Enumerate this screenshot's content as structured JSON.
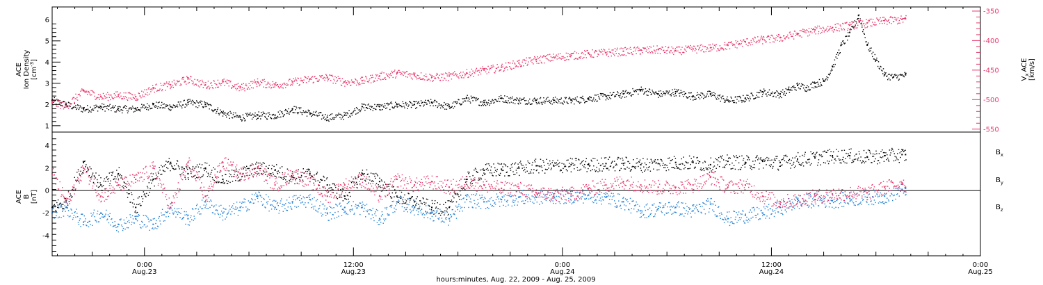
{
  "colors": {
    "black": "#000000",
    "blue": "#1f7fd6",
    "pink": "#e8356a",
    "axis": "#000000"
  },
  "x_axis": {
    "caption": "hours:minutes, Aug. 22, 2009 - Aug. 25, 2009",
    "ticks": [
      {
        "time": "0:00",
        "date": "Aug.23"
      },
      {
        "time": "12:00",
        "date": "Aug.23"
      },
      {
        "time": "0:00",
        "date": "Aug.24"
      },
      {
        "time": "12:00",
        "date": "Aug.24"
      },
      {
        "time": "0:00",
        "date": "Aug.25"
      }
    ]
  },
  "chart_data": [
    {
      "type": "scatter",
      "panel": "top",
      "xlabel": "hours:minutes, Aug. 22, 2009 - Aug. 25, 2009",
      "x_unit": "hours since 2009-08-22 00:00",
      "xlim": [
        18.7,
        72
      ],
      "left_axis": {
        "label_lines": [
          "ACE",
          "Ion Density"
        ],
        "unit": "[cm",
        "unit_exp": "-3",
        "unit_close": "]",
        "ylim": [
          0.7,
          6.6
        ],
        "ticks": [
          "1",
          "2",
          "3",
          "4",
          "5",
          "6"
        ]
      },
      "right_axis": {
        "label_main": "ACE",
        "label_sub": "V",
        "label_subscript": "x",
        "unit": "[km/s]",
        "ylim": [
          -555,
          -343
        ],
        "ticks": [
          "-350",
          "-400",
          "-450",
          "-500",
          "-550"
        ],
        "color": "#e8356a"
      },
      "series": [
        {
          "color": "#000000",
          "axis": "left",
          "x": [
            18.7,
            19.5,
            20.5,
            21.5,
            22.5,
            23.5,
            24.5,
            25.5,
            26.5,
            27.5,
            28.5,
            29.5,
            30.5,
            31.5,
            32.5,
            33.5,
            34.5,
            35.5,
            36.5,
            37.5,
            38.5,
            39.5,
            40.5,
            41.5,
            42.5,
            43.5,
            44.5,
            45.5,
            46.5,
            47.5,
            48.5,
            49.5,
            50.5,
            51.5,
            52.5,
            53.5,
            54.5,
            55.5,
            56.5,
            57.5,
            58.5,
            59.5,
            60.5,
            61.0,
            61.5,
            62.0,
            62.5,
            63.0,
            63.5,
            64.0,
            64.5,
            65.0,
            65.5,
            66.0,
            66.5,
            67.0,
            67.7
          ],
          "y": [
            2.2,
            2.0,
            1.8,
            1.9,
            1.8,
            1.8,
            2.0,
            1.9,
            2.1,
            2.0,
            1.6,
            1.4,
            1.5,
            1.5,
            1.8,
            1.6,
            1.4,
            1.5,
            1.9,
            1.9,
            2.0,
            2.0,
            2.1,
            1.9,
            2.3,
            2.1,
            2.3,
            2.2,
            2.2,
            2.2,
            2.2,
            2.3,
            2.4,
            2.5,
            2.7,
            2.5,
            2.6,
            2.4,
            2.5,
            2.2,
            2.3,
            2.6,
            2.5,
            2.7,
            2.9,
            2.8,
            3.0,
            3.1,
            3.8,
            4.8,
            5.4,
            6.2,
            4.8,
            4.1,
            3.4,
            3.3,
            3.4
          ]
        },
        {
          "color": "#e8356a",
          "axis": "right",
          "x": [
            18.7,
            19.5,
            20.5,
            21.5,
            22.5,
            23.5,
            24.5,
            25.5,
            26.5,
            27.5,
            28.5,
            29.5,
            30.5,
            31.5,
            32.5,
            33.5,
            34.5,
            35.5,
            36.5,
            37.5,
            38.5,
            39.5,
            40.5,
            41.5,
            42.5,
            43.5,
            44.5,
            45.5,
            46.5,
            47.5,
            48.5,
            49.5,
            50.5,
            51.5,
            52.5,
            53.5,
            54.5,
            55.5,
            56.5,
            57.5,
            58.5,
            59.5,
            60.5,
            61.5,
            62.5,
            63.5,
            64.5,
            65.5,
            66.5,
            67.5,
            67.7
          ],
          "y": [
            -505,
            -510,
            -485,
            -495,
            -492,
            -495,
            -480,
            -475,
            -465,
            -475,
            -470,
            -480,
            -470,
            -475,
            -470,
            -465,
            -462,
            -470,
            -468,
            -460,
            -455,
            -458,
            -462,
            -460,
            -455,
            -450,
            -445,
            -438,
            -432,
            -428,
            -425,
            -422,
            -420,
            -418,
            -416,
            -415,
            -417,
            -414,
            -412,
            -408,
            -402,
            -398,
            -395,
            -388,
            -382,
            -378,
            -374,
            -370,
            -366,
            -364,
            -363
          ]
        }
      ]
    },
    {
      "type": "scatter",
      "panel": "bottom",
      "xlabel": "hours:minutes, Aug. 22, 2009 - Aug. 25, 2009",
      "x_unit": "hours since 2009-08-22 00:00",
      "xlim": [
        18.7,
        72
      ],
      "left_axis": {
        "label_lines": [
          "ACE",
          "B"
        ],
        "unit": "[nT]",
        "ylim": [
          -5.8,
          5.2
        ],
        "ticks": [
          "4",
          "2",
          "0",
          "-2",
          "-4"
        ],
        "zero_line": true
      },
      "series": [
        {
          "name": "B",
          "subscript": "x",
          "color": "#000000",
          "x": [
            18.7,
            19.5,
            20.5,
            21.5,
            22.5,
            23.5,
            24.5,
            25.5,
            26.5,
            27.5,
            28.5,
            29.5,
            30.5,
            31.5,
            32.5,
            33.5,
            34.5,
            35.5,
            36.5,
            37.5,
            38.5,
            39.5,
            40.5,
            41.5,
            42.5,
            43.5,
            44.5,
            45.5,
            46.5,
            47.5,
            48.5,
            49.5,
            50.5,
            51.5,
            52.5,
            53.5,
            54.5,
            55.5,
            56.5,
            57.5,
            58.5,
            59.5,
            60.5,
            61.5,
            62.5,
            63.5,
            64.5,
            65.5,
            66.5,
            67.5,
            67.7
          ],
          "y": [
            -1.5,
            -1.0,
            2.5,
            0.5,
            1.5,
            -1.5,
            1.0,
            2.5,
            1.5,
            2.0,
            1.0,
            1.5,
            2.0,
            1.8,
            1.2,
            1.5,
            0.5,
            -0.5,
            1.5,
            0.8,
            -0.5,
            -1.0,
            -1.5,
            -1.5,
            1.0,
            1.8,
            1.9,
            2.0,
            2.2,
            2.2,
            2.3,
            2.3,
            2.4,
            2.4,
            2.3,
            2.4,
            2.5,
            2.5,
            2.3,
            2.6,
            2.5,
            2.6,
            2.5,
            2.8,
            2.9,
            3.1,
            3.1,
            3.0,
            3.1,
            3.2,
            3.2
          ]
        },
        {
          "name": "B",
          "subscript": "y",
          "color": "#1f7fd6",
          "x": [
            18.7,
            19.5,
            20.5,
            21.5,
            22.5,
            23.5,
            24.5,
            25.5,
            26.5,
            27.5,
            28.5,
            29.5,
            30.5,
            31.5,
            32.5,
            33.5,
            34.5,
            35.5,
            36.5,
            37.5,
            38.5,
            39.5,
            40.5,
            41.5,
            42.5,
            43.5,
            44.5,
            45.5,
            46.5,
            47.5,
            48.5,
            49.5,
            50.5,
            51.5,
            52.5,
            53.5,
            54.5,
            55.5,
            56.5,
            57.5,
            58.5,
            59.5,
            60.5,
            61.5,
            62.5,
            63.5,
            64.5,
            65.5,
            66.5,
            67.5,
            67.7
          ],
          "y": [
            -2.0,
            -1.5,
            -2.8,
            -2.0,
            -3.0,
            -2.5,
            -3.0,
            -1.5,
            -2.5,
            -1.0,
            -2.0,
            -1.5,
            -0.5,
            -1.5,
            -1.0,
            -0.8,
            -2.0,
            -1.5,
            -1.5,
            -2.5,
            -1.0,
            -1.5,
            -2.0,
            -2.5,
            -0.8,
            -1.0,
            -0.8,
            -0.6,
            -0.6,
            -0.5,
            -0.5,
            -0.4,
            -0.6,
            -1.0,
            -1.8,
            -1.6,
            -1.5,
            -1.8,
            -1.2,
            -2.5,
            -2.2,
            -2.0,
            -1.5,
            -1.0,
            -0.8,
            -0.9,
            -0.7,
            -0.6,
            -0.5,
            0.1,
            0.2
          ]
        },
        {
          "name": "B",
          "subscript": "z",
          "color": "#e8356a",
          "x": [
            18.7,
            19.5,
            20.5,
            21.5,
            22.5,
            23.5,
            24.5,
            25.5,
            26.5,
            27.5,
            28.5,
            29.5,
            30.5,
            31.5,
            32.5,
            33.5,
            34.5,
            35.5,
            36.5,
            37.5,
            38.5,
            39.5,
            40.5,
            41.5,
            42.5,
            43.5,
            44.5,
            45.5,
            46.5,
            47.5,
            48.5,
            49.5,
            50.5,
            51.5,
            52.5,
            53.5,
            54.5,
            55.5,
            56.5,
            57.5,
            58.5,
            59.5,
            60.5,
            61.5,
            62.5,
            63.5,
            64.5,
            65.5,
            66.5,
            67.5,
            67.7
          ],
          "y": [
            1.5,
            -1.0,
            2.0,
            -0.5,
            0.5,
            1.0,
            2.0,
            -1.5,
            2.5,
            -0.5,
            2.5,
            1.5,
            2.0,
            0.5,
            1.5,
            0.8,
            -0.5,
            0.5,
            1.0,
            -0.5,
            1.0,
            0.5,
            0.8,
            0.3,
            0.8,
            0.5,
            0.2,
            0.2,
            -0.2,
            -0.3,
            -0.3,
            0.2,
            0.5,
            0.8,
            0.5,
            0.3,
            0.3,
            0.5,
            1.2,
            0.3,
            0.5,
            -0.5,
            -1.0,
            -0.8,
            -0.5,
            -0.3,
            -0.2,
            -0.2,
            0.3,
            0.7,
            0.3
          ]
        }
      ]
    }
  ]
}
